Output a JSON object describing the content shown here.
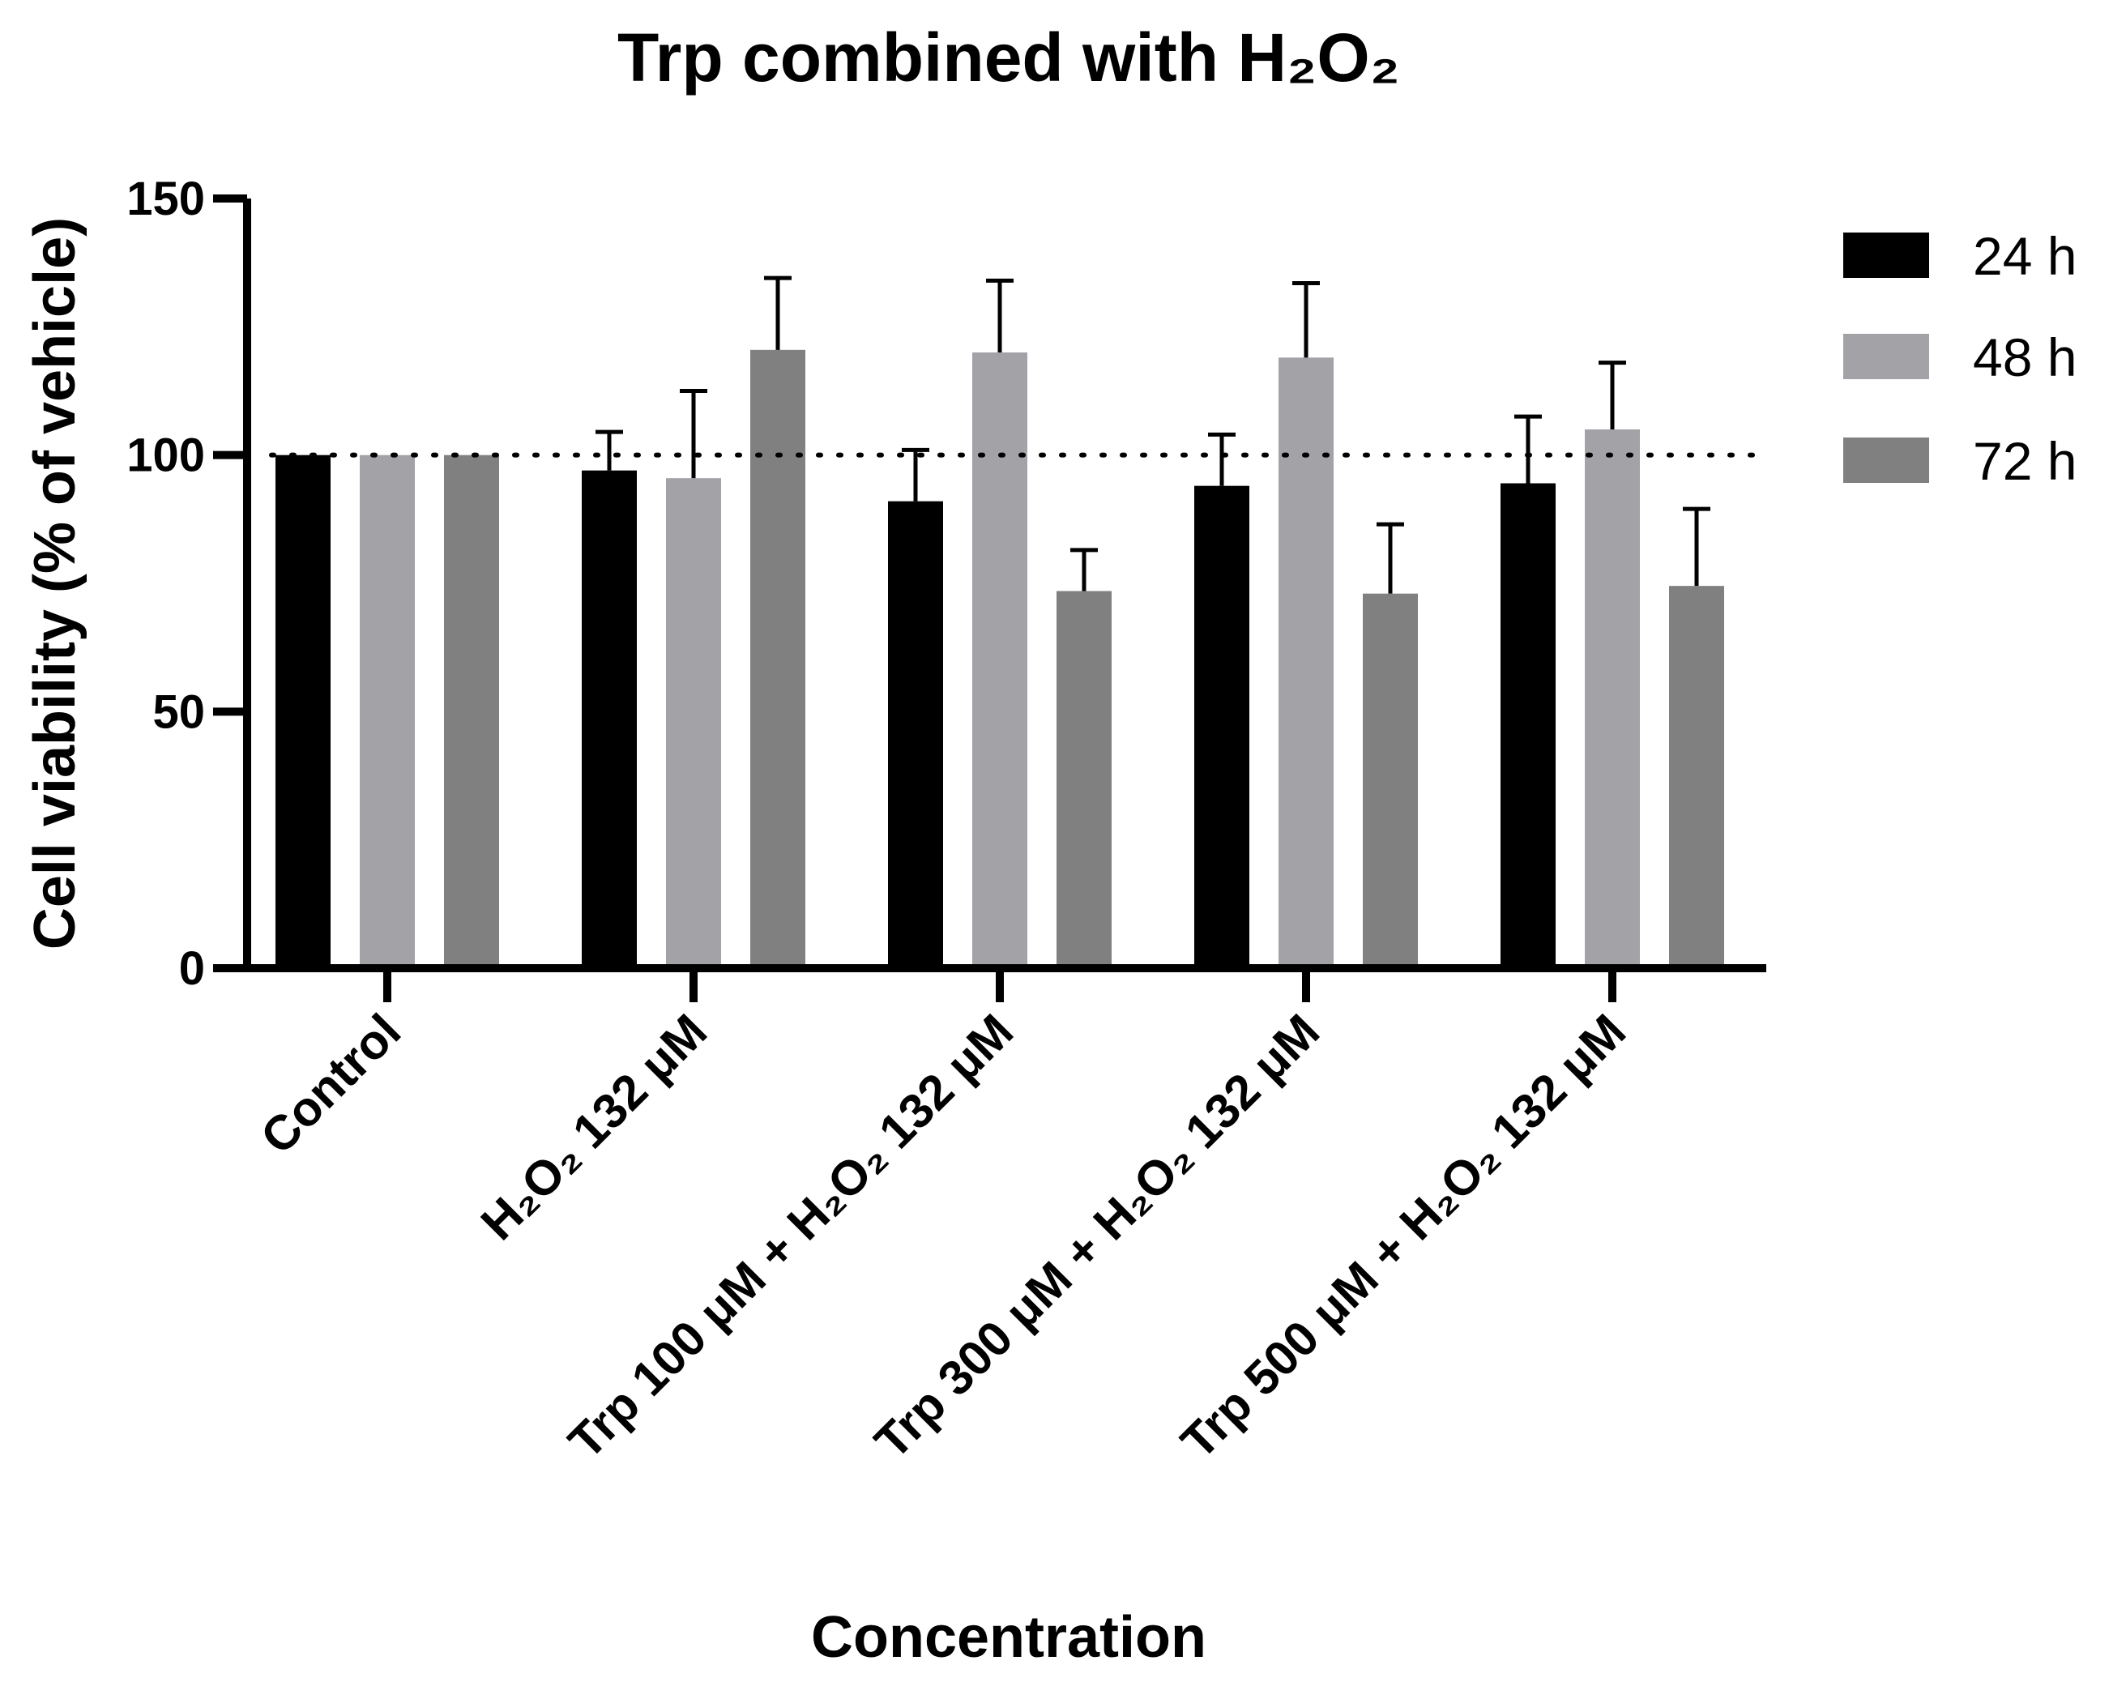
{
  "chart_data": {
    "type": "bar",
    "title": "Trp combined with H₂O₂",
    "xlabel": "Concentration",
    "ylabel": "Cell viability (% of vehicle)",
    "ylim": [
      0,
      150
    ],
    "yticks": [
      0,
      50,
      100,
      150
    ],
    "reference_line": 100,
    "categories": [
      "Control",
      "H₂O₂ 132 μM",
      "Trp 100 μM + H₂O₂ 132 μM",
      "Trp 300 μM + H₂O₂ 132 μM",
      "Trp 500 μM + H₂O₂ 132 μM"
    ],
    "series": [
      {
        "name": "24 h",
        "color": "#000000",
        "values": [
          100,
          97,
          91,
          94,
          94.5
        ],
        "errors": [
          0,
          7.5,
          10,
          10,
          13
        ]
      },
      {
        "name": "48 h",
        "color": "#a3a3a7",
        "values": [
          100,
          95.5,
          120,
          119,
          105
        ],
        "errors": [
          0,
          17,
          14,
          14.5,
          13
        ]
      },
      {
        "name": "72 h",
        "color": "#808080",
        "values": [
          100,
          120.5,
          73.5,
          73,
          74.5
        ],
        "errors": [
          0,
          14,
          8,
          13.5,
          15
        ]
      }
    ],
    "legend_position": "top-right"
  }
}
